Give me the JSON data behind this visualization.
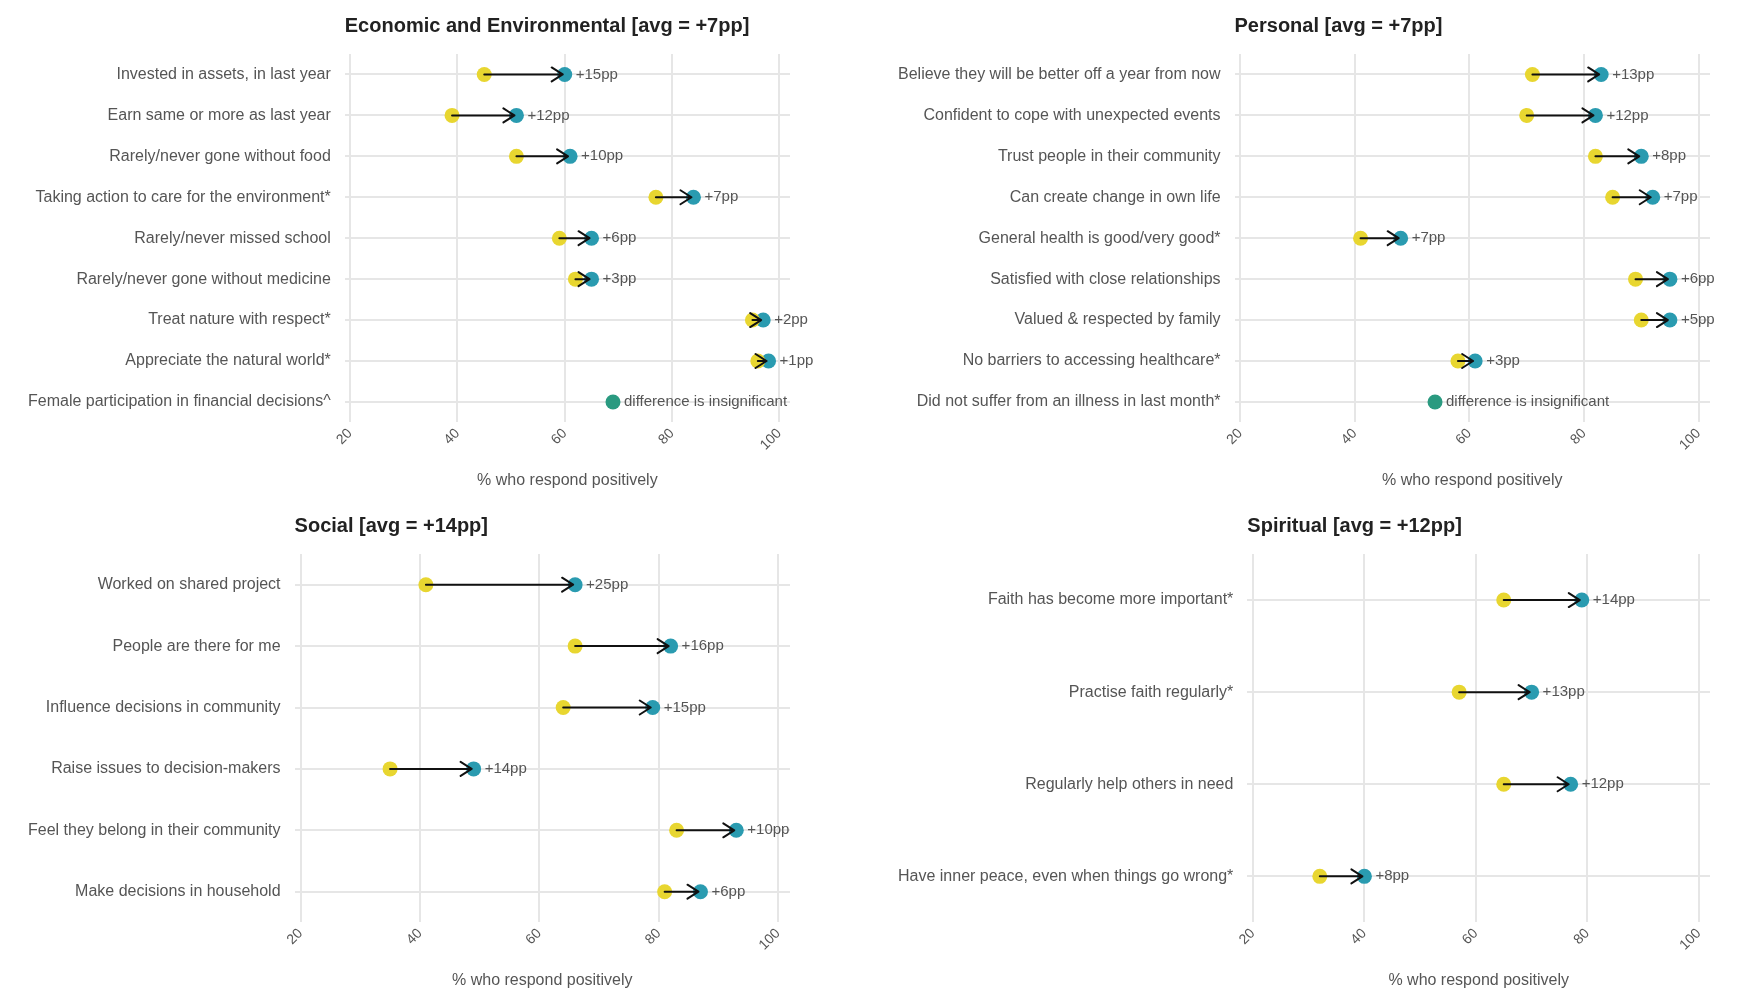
{
  "chart_data": [
    {
      "type": "scatter",
      "orientation": "horizontal",
      "title": "Economic and Environmental [avg = +7pp]",
      "xlabel": "% who respond positively",
      "categories": [
        "Invested in assets, in last year",
        "Earn same or more as last year",
        "Rarely/never gone without food",
        "Taking action to care for the environment*",
        "Rarely/never missed school",
        "Rarely/never gone without medicine",
        "Treat nature with respect*",
        "Appreciate the natural world*",
        "Female participation in financial decisions^"
      ],
      "series": [
        {
          "color": "#e8d630",
          "values": [
            45,
            39,
            51,
            77,
            59,
            62,
            95,
            96,
            null
          ]
        },
        {
          "color": "#2a9bb0",
          "values": [
            60,
            51,
            61,
            84,
            65,
            65,
            97,
            98,
            null
          ]
        },
        {
          "color": "#2a9a80",
          "values": [
            null,
            null,
            null,
            null,
            null,
            null,
            null,
            null,
            69
          ]
        }
      ],
      "annotations": [
        {
          "text": "+15pp",
          "x": 60,
          "y": "Invested in assets, in last year"
        },
        {
          "text": "+12pp",
          "x": 51,
          "y": "Earn same or more as last year"
        },
        {
          "text": "+10pp",
          "x": 61,
          "y": "Rarely/never gone without food"
        },
        {
          "text": "+7pp",
          "x": 84,
          "y": "Taking action to care for the environment*"
        },
        {
          "text": "+6pp",
          "x": 65,
          "y": "Rarely/never missed school"
        },
        {
          "text": "+3pp",
          "x": 65,
          "y": "Rarely/never gone without medicine"
        },
        {
          "text": "+2pp",
          "x": 97,
          "y": "Treat nature with respect*"
        },
        {
          "text": "+1pp",
          "x": 98,
          "y": "Appreciate the natural world*"
        },
        {
          "text": "difference is insignificant",
          "x": 69,
          "y": "Female participation in financial decisions^"
        }
      ],
      "xlim": [
        19,
        102
      ],
      "xticks": [
        20,
        40,
        60,
        80,
        100
      ],
      "grid": true,
      "marker": "circle",
      "legend": false
    },
    {
      "type": "scatter",
      "orientation": "horizontal",
      "title": "Personal [avg = +7pp]",
      "xlabel": "% who respond positively",
      "categories": [
        "Believe they will be better off a year from now",
        "Confident to cope with unexpected events",
        "Trust people in their community",
        "Can create change in own life",
        "General health is good/very good*",
        "Satisfied with close relationships",
        "Valued & respected by family",
        "No barriers to accessing healthcare*",
        "Did not suffer from an illness in last month*"
      ],
      "series": [
        {
          "color": "#e8d630",
          "values": [
            71,
            70,
            82,
            85,
            41,
            89,
            90,
            58,
            null
          ]
        },
        {
          "color": "#2a9bb0",
          "values": [
            83,
            82,
            90,
            92,
            48,
            95,
            95,
            61,
            null
          ]
        },
        {
          "color": "#2a9a80",
          "values": [
            null,
            null,
            null,
            null,
            null,
            null,
            null,
            null,
            54
          ]
        }
      ],
      "annotations": [
        {
          "text": "+13pp",
          "x": 83,
          "y": "Believe they will be better off a year from now"
        },
        {
          "text": "+12pp",
          "x": 82,
          "y": "Confident to cope with unexpected events"
        },
        {
          "text": "+8pp",
          "x": 90,
          "y": "Trust people in their community"
        },
        {
          "text": "+7pp",
          "x": 92,
          "y": "Can create change in own life"
        },
        {
          "text": "+7pp",
          "x": 48,
          "y": "General health is good/very good*"
        },
        {
          "text": "+6pp",
          "x": 95,
          "y": "Satisfied with close relationships"
        },
        {
          "text": "+5pp",
          "x": 95,
          "y": "Valued & respected by family"
        },
        {
          "text": "+3pp",
          "x": 61,
          "y": "No barriers to accessing healthcare*"
        },
        {
          "text": "difference is insignificant",
          "x": 54,
          "y": "Did not suffer from an illness in last month*"
        }
      ],
      "xlim": [
        19,
        102
      ],
      "xticks": [
        20,
        40,
        60,
        80,
        100
      ],
      "grid": true,
      "marker": "circle",
      "legend": false
    },
    {
      "type": "scatter",
      "orientation": "horizontal",
      "title": "Social [avg = +14pp]",
      "xlabel": "% who respond positively",
      "categories": [
        "Worked on shared project",
        "People are there for me",
        "Influence decisions in community",
        "Raise issues to decision-makers",
        "Feel they belong in their community",
        "Make decisions in household"
      ],
      "series": [
        {
          "color": "#e8d630",
          "values": [
            41,
            66,
            64,
            35,
            83,
            81
          ]
        },
        {
          "color": "#2a9bb0",
          "values": [
            66,
            82,
            79,
            49,
            93,
            87
          ]
        }
      ],
      "annotations": [
        {
          "text": "+25pp",
          "x": 66,
          "y": "Worked on shared project"
        },
        {
          "text": "+16pp",
          "x": 82,
          "y": "People are there for me"
        },
        {
          "text": "+15pp",
          "x": 79,
          "y": "Influence decisions in community"
        },
        {
          "text": "+14pp",
          "x": 49,
          "y": "Raise issues to decision-makers"
        },
        {
          "text": "+10pp",
          "x": 93,
          "y": "Feel they belong in their community"
        },
        {
          "text": "+6pp",
          "x": 87,
          "y": "Make decisions in household"
        }
      ],
      "xlim": [
        19,
        102
      ],
      "xticks": [
        20,
        40,
        60,
        80,
        100
      ],
      "grid": true,
      "marker": "circle",
      "legend": false
    },
    {
      "type": "scatter",
      "orientation": "horizontal",
      "title": "Spiritual [avg = +12pp]",
      "xlabel": "% who respond positively",
      "categories": [
        "Faith has become more important*",
        "Practise faith regularly*",
        "Regularly help others in need",
        "Have inner peace, even when things go wrong*"
      ],
      "series": [
        {
          "color": "#e8d630",
          "values": [
            65,
            57,
            65,
            32
          ]
        },
        {
          "color": "#2a9bb0",
          "values": [
            79,
            70,
            77,
            40
          ]
        }
      ],
      "annotations": [
        {
          "text": "+14pp",
          "x": 79,
          "y": "Faith has become more important*"
        },
        {
          "text": "+13pp",
          "x": 70,
          "y": "Practise faith regularly*"
        },
        {
          "text": "+12pp",
          "x": 77,
          "y": "Regularly help others in need"
        },
        {
          "text": "+8pp",
          "x": 40,
          "y": "Have inner peace, even when things go wrong*"
        }
      ],
      "xlim": [
        19,
        102
      ],
      "xticks": [
        20,
        40,
        60,
        80,
        100
      ],
      "grid": true,
      "marker": "circle",
      "legend": false
    }
  ]
}
